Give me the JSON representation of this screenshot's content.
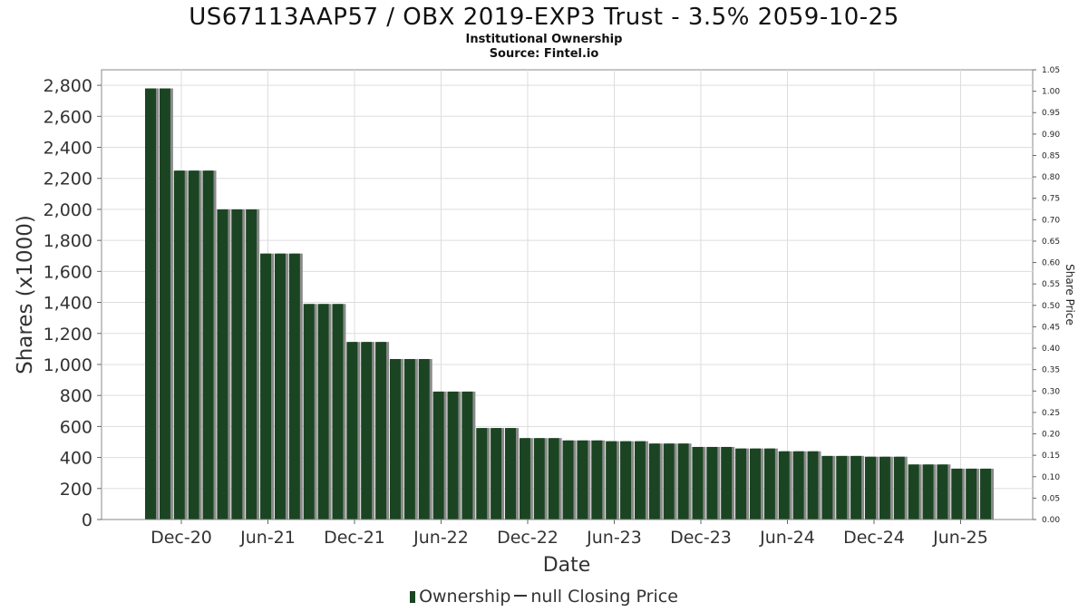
{
  "chart_data": {
    "type": "bar",
    "title": "US67113AAP57 / OBX 2019-EXP3 Trust - 3.5% 2059-10-25",
    "subtitle": "Institutional Ownership",
    "source": "Source: Fintel.io",
    "xlabel": "Date",
    "ylabel": "Shares (x1000)",
    "y2label": "Share Price",
    "ylim": [
      0,
      2900
    ],
    "y2lim": [
      0,
      1.05
    ],
    "yticks": [
      "0",
      "200",
      "400",
      "600",
      "800",
      "1,000",
      "1,200",
      "1,400",
      "1,600",
      "1,800",
      "2,000",
      "2,200",
      "2,400",
      "2,600",
      "2,800"
    ],
    "y2ticks": [
      "0.00",
      "0.05",
      "0.10",
      "0.15",
      "0.20",
      "0.25",
      "0.30",
      "0.35",
      "0.40",
      "0.45",
      "0.50",
      "0.55",
      "0.60",
      "0.65",
      "0.70",
      "0.75",
      "0.80",
      "0.85",
      "0.90",
      "0.95",
      "1.00",
      "1.05"
    ],
    "xticks": [
      "Dec-20",
      "Jun-21",
      "Dec-21",
      "Jun-22",
      "Dec-22",
      "Jun-23",
      "Dec-23",
      "Jun-24",
      "Dec-24",
      "Jun-25"
    ],
    "grid": true,
    "legend": [
      "Ownership",
      "null Closing Price"
    ],
    "legend_position": "bottom",
    "bar_color": "#1b4522",
    "series": [
      {
        "name": "Ownership",
        "values": [
          2780,
          2780,
          2250,
          2250,
          2250,
          2000,
          2000,
          2000,
          1715,
          1715,
          1715,
          1390,
          1390,
          1390,
          1145,
          1145,
          1145,
          1035,
          1035,
          1035,
          825,
          825,
          825,
          590,
          590,
          590,
          525,
          525,
          525,
          510,
          510,
          510,
          505,
          505,
          505,
          490,
          490,
          490,
          468,
          468,
          468,
          458,
          458,
          458,
          440,
          440,
          440,
          410,
          410,
          410,
          405,
          405,
          405,
          355,
          355,
          355,
          328,
          328,
          328
        ]
      }
    ]
  }
}
